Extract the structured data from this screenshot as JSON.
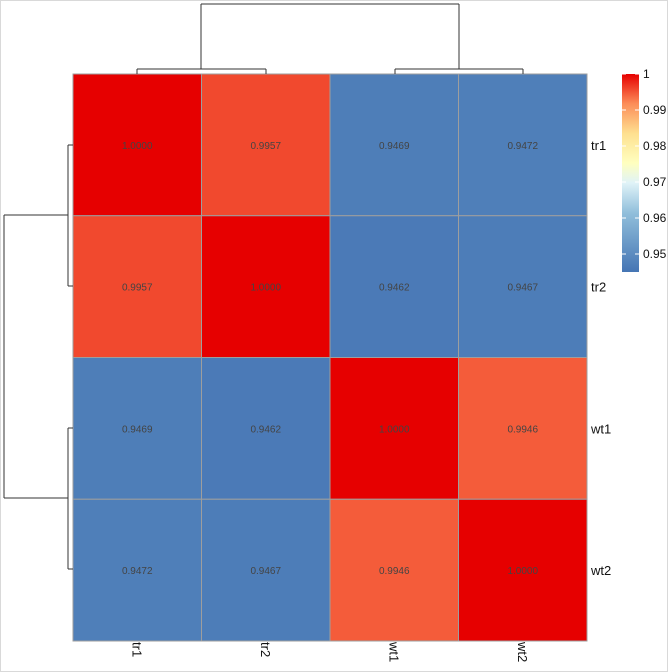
{
  "chart_data": {
    "type": "heatmap",
    "rows": [
      "tr1",
      "tr2",
      "wt1",
      "wt2"
    ],
    "columns": [
      "tr1",
      "tr2",
      "wt1",
      "wt2"
    ],
    "values": [
      [
        1.0,
        0.9957,
        0.9469,
        0.9472
      ],
      [
        0.9957,
        1.0,
        0.9462,
        0.9467
      ],
      [
        0.9469,
        0.9462,
        1.0,
        0.9946
      ],
      [
        0.9472,
        0.9467,
        0.9946,
        1.0
      ]
    ],
    "cell_labels": [
      [
        "1.0000",
        "0.9957",
        "0.9469",
        "0.9472"
      ],
      [
        "0.9957",
        "1.0000",
        "0.9462",
        "0.9467"
      ],
      [
        "0.9469",
        "0.9462",
        "1.0000",
        "0.9946"
      ],
      [
        "0.9472",
        "0.9467",
        "0.9946",
        "1.0000"
      ]
    ],
    "color_scale": {
      "min": 0.945,
      "max": 1.0,
      "colors": [
        "#4575b4",
        "#91bfdb",
        "#e0f3f8",
        "#ffffbf",
        "#fee090",
        "#fc8d59",
        "#e60000"
      ]
    },
    "legend": {
      "position": "top-right",
      "ticks": [
        "1",
        "0.99",
        "0.98",
        "0.97",
        "0.96",
        "0.95"
      ],
      "tick_values": [
        1.0,
        0.99,
        0.98,
        0.97,
        0.96,
        0.95
      ]
    },
    "dendrogram": {
      "clusters": [
        [
          "tr1",
          "tr2"
        ],
        [
          "wt1",
          "wt2"
        ]
      ]
    },
    "title": "",
    "xlabel": "",
    "ylabel": ""
  }
}
